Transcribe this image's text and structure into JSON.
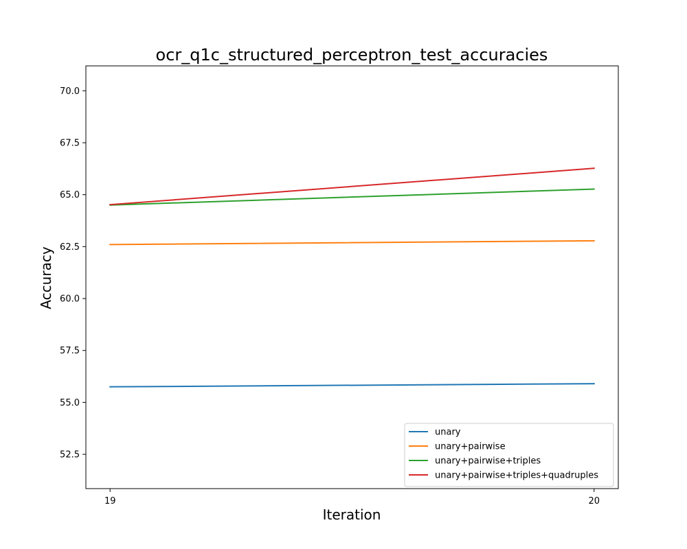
{
  "chart_data": {
    "type": "line",
    "title": "ocr_q1c_structured_perceptron_test_accuracies",
    "xlabel": "Iteration",
    "ylabel": "Accuracy",
    "x": [
      19,
      20
    ],
    "x_ticks": [
      "19",
      "20"
    ],
    "xlim": [
      18.95,
      20.05
    ],
    "ylim": [
      50.85,
      71.2
    ],
    "y_ticks": [
      "52.5",
      "55.0",
      "57.5",
      "60.0",
      "62.5",
      "65.0",
      "67.5",
      "70.0"
    ],
    "grid": false,
    "legend_position": "lower-right",
    "series": [
      {
        "name": "unary",
        "color": "#1f77b4",
        "values": [
          55.75,
          55.9
        ]
      },
      {
        "name": "unary+pairwise",
        "color": "#ff7f0e",
        "values": [
          62.6,
          62.78
        ]
      },
      {
        "name": "unary+pairwise+triples",
        "color": "#2ca02c",
        "values": [
          64.5,
          65.27
        ]
      },
      {
        "name": "unary+pairwise+triples+quadruples",
        "color": "#d62728",
        "values": [
          64.52,
          66.27
        ]
      }
    ]
  }
}
